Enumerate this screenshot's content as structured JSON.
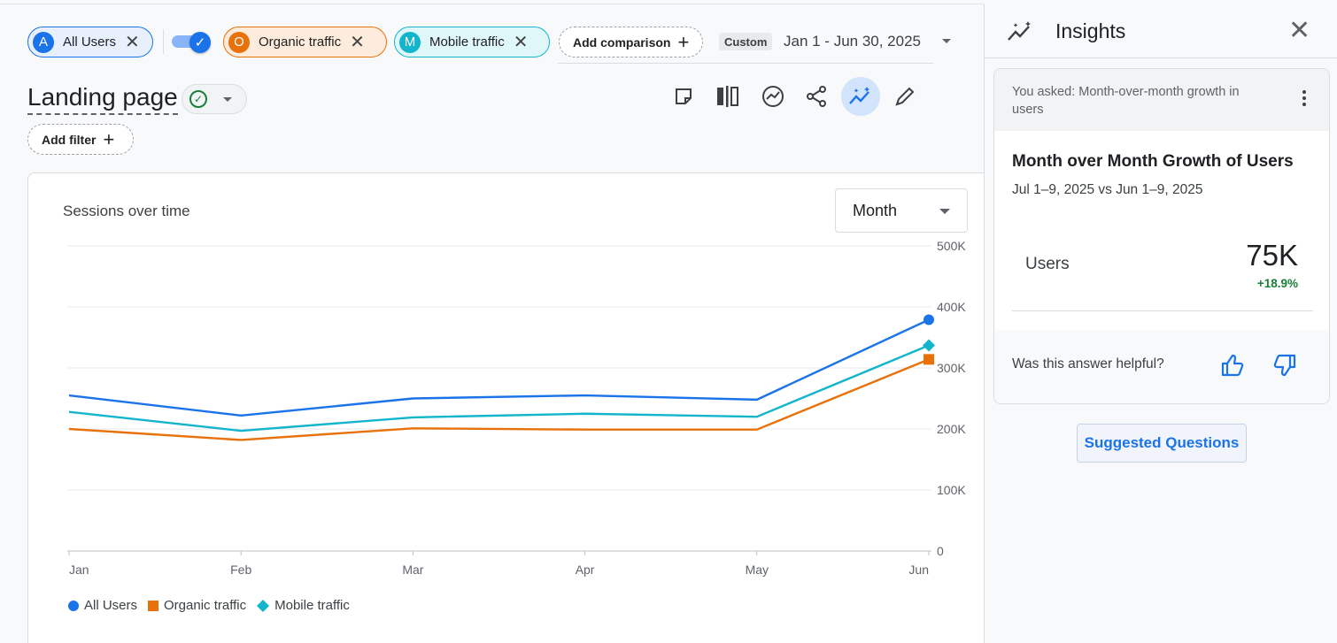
{
  "comparisons": {
    "chips": [
      {
        "initial": "A",
        "label": "All Users",
        "color": "#1a73e8"
      },
      {
        "initial": "O",
        "label": "Organic traffic",
        "color": "#e8710a"
      },
      {
        "initial": "M",
        "label": "Mobile traffic",
        "color": "#12b5cb"
      }
    ],
    "add_label": "Add comparison",
    "date_badge": "Custom",
    "date_range": "Jan 1 - Jun 30, 2025"
  },
  "report": {
    "title": "Landing page",
    "add_filter_label": "Add filter",
    "toolbar_icons": [
      "note-icon",
      "compare-icon",
      "insights-trend-icon",
      "share-icon",
      "ai-insights-icon",
      "edit-icon"
    ]
  },
  "chart_card": {
    "title": "Sessions over time",
    "granularity": "Month"
  },
  "chart_data": {
    "type": "line",
    "categories": [
      "Jan",
      "Feb",
      "Mar",
      "Apr",
      "May",
      "Jun"
    ],
    "ylim": [
      0,
      500000
    ],
    "yticks": [
      "0",
      "100K",
      "200K",
      "300K",
      "400K",
      "500K"
    ],
    "grid": true,
    "legend_position": "bottom-left",
    "series": [
      {
        "name": "All Users",
        "color": "#1a73e8",
        "marker": "circle",
        "values": [
          255000,
          222000,
          250000,
          255000,
          248000,
          379000
        ]
      },
      {
        "name": "Organic traffic",
        "color": "#e8710a",
        "marker": "square",
        "values": [
          200000,
          182000,
          201000,
          199000,
          199000,
          314000
        ]
      },
      {
        "name": "Mobile traffic",
        "color": "#12b5cb",
        "marker": "diamond",
        "values": [
          228000,
          197000,
          219000,
          225000,
          220000,
          337000
        ]
      }
    ]
  },
  "insights": {
    "title": "Insights",
    "asked": "You asked: Month-over-month growth in users",
    "heading": "Month over Month Growth of Users",
    "period": "Jul 1–9, 2025 vs Jun 1–9, 2025",
    "metric_label": "Users",
    "metric_value": "75K",
    "metric_delta": "+18.9%",
    "helpful_prompt": "Was this answer helpful?",
    "suggested_label": "Suggested Questions"
  }
}
